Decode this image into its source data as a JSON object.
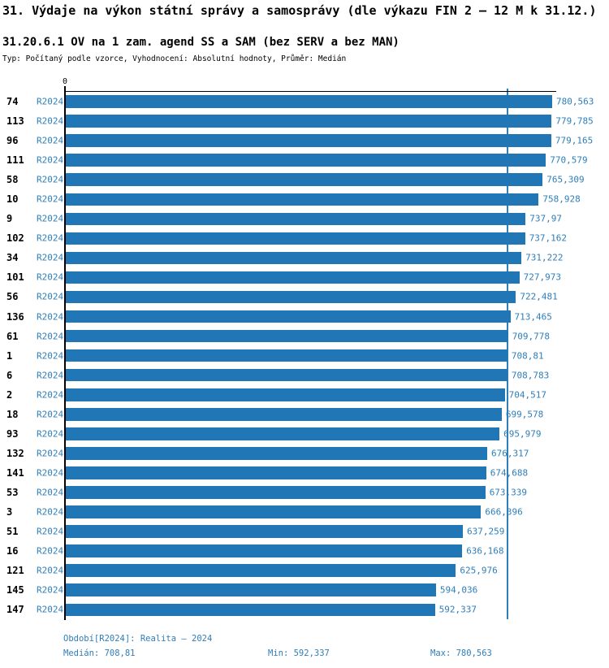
{
  "header": {
    "title": "31. Výdaje na výkon státní správy a samosprávy (dle výkazu FIN 2 – 12 M k 31.12.)",
    "subtitle": "31.20.6.1 OV na 1 zam. agend SS a SAM (bez SERV a bez MAN)",
    "meta": "Typ: Počítaný podle vzorce, Vyhodnocení: Absolutní hodnoty, Průměr: Medián"
  },
  "colors": {
    "bar": "#2176b5",
    "blue_text": "#2e7eba",
    "median_line": "#2e7eba",
    "axis": "#000000"
  },
  "chart_data": {
    "type": "bar",
    "orientation": "horizontal",
    "axis_zero_label": "0",
    "xlim": [
      0,
      780.563
    ],
    "grid": false,
    "median_value": 708.81,
    "series_name": "R2024",
    "rows": [
      {
        "id": "74",
        "period": "R2024",
        "value": 780.563,
        "value_label": "780,563"
      },
      {
        "id": "113",
        "period": "R2024",
        "value": 779.785,
        "value_label": "779,785"
      },
      {
        "id": "96",
        "period": "R2024",
        "value": 779.165,
        "value_label": "779,165"
      },
      {
        "id": "111",
        "period": "R2024",
        "value": 770.579,
        "value_label": "770,579"
      },
      {
        "id": "58",
        "period": "R2024",
        "value": 765.309,
        "value_label": "765,309"
      },
      {
        "id": "10",
        "period": "R2024",
        "value": 758.928,
        "value_label": "758,928"
      },
      {
        "id": "9",
        "period": "R2024",
        "value": 737.97,
        "value_label": "737,97"
      },
      {
        "id": "102",
        "period": "R2024",
        "value": 737.162,
        "value_label": "737,162"
      },
      {
        "id": "34",
        "period": "R2024",
        "value": 731.222,
        "value_label": "731,222"
      },
      {
        "id": "101",
        "period": "R2024",
        "value": 727.973,
        "value_label": "727,973"
      },
      {
        "id": "56",
        "period": "R2024",
        "value": 722.481,
        "value_label": "722,481"
      },
      {
        "id": "136",
        "period": "R2024",
        "value": 713.465,
        "value_label": "713,465"
      },
      {
        "id": "61",
        "period": "R2024",
        "value": 709.778,
        "value_label": "709,778"
      },
      {
        "id": "1",
        "period": "R2024",
        "value": 708.81,
        "value_label": "708,81"
      },
      {
        "id": "6",
        "period": "R2024",
        "value": 708.783,
        "value_label": "708,783"
      },
      {
        "id": "2",
        "period": "R2024",
        "value": 704.517,
        "value_label": "704,517"
      },
      {
        "id": "18",
        "period": "R2024",
        "value": 699.578,
        "value_label": "699,578"
      },
      {
        "id": "93",
        "period": "R2024",
        "value": 695.979,
        "value_label": "695,979"
      },
      {
        "id": "132",
        "period": "R2024",
        "value": 676.317,
        "value_label": "676,317"
      },
      {
        "id": "141",
        "period": "R2024",
        "value": 674.688,
        "value_label": "674,688"
      },
      {
        "id": "53",
        "period": "R2024",
        "value": 673.339,
        "value_label": "673,339"
      },
      {
        "id": "3",
        "period": "R2024",
        "value": 666.396,
        "value_label": "666,396"
      },
      {
        "id": "51",
        "period": "R2024",
        "value": 637.259,
        "value_label": "637,259"
      },
      {
        "id": "16",
        "period": "R2024",
        "value": 636.168,
        "value_label": "636,168"
      },
      {
        "id": "121",
        "period": "R2024",
        "value": 625.976,
        "value_label": "625,976"
      },
      {
        "id": "145",
        "period": "R2024",
        "value": 594.036,
        "value_label": "594,036"
      },
      {
        "id": "147",
        "period": "R2024",
        "value": 592.337,
        "value_label": "592,337"
      }
    ]
  },
  "footer": {
    "period": "Období[R2024]: Realita – 2024",
    "median": "Medián: 708,81",
    "min": "Min: 592,337",
    "max": "Max: 780,563"
  }
}
